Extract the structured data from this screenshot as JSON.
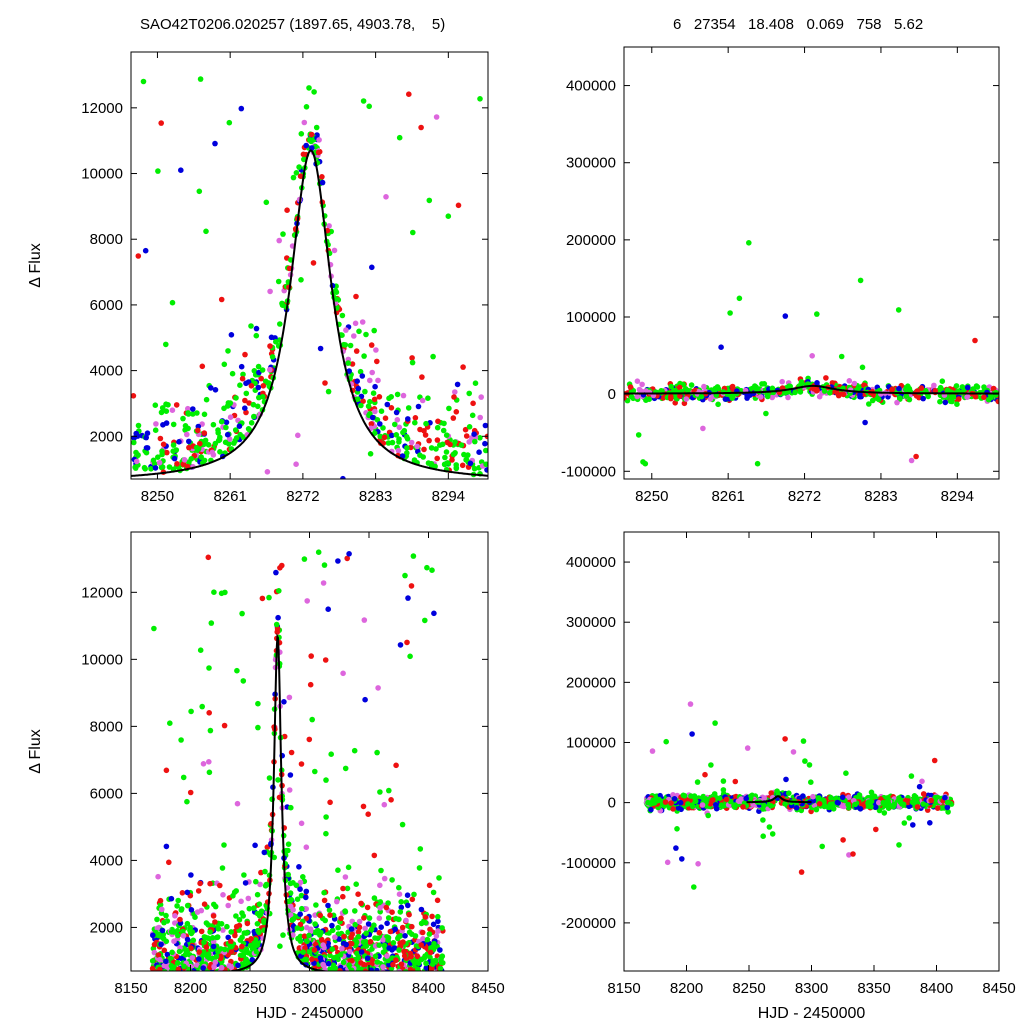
{
  "header": {
    "title": "SAO42T0206.020257 (1897.65, 4903.78,    5)",
    "stats": "6   27354   18.408   0.069   758   5.62"
  },
  "chart_data": [
    {
      "id": "top-left",
      "type": "scatter",
      "xlim": [
        8246,
        8300
      ],
      "ylim": [
        700,
        13700
      ],
      "xticks": [
        8250,
        8261,
        8272,
        8283,
        8294
      ],
      "yticks": [
        2000,
        4000,
        6000,
        8000,
        10000,
        12000
      ],
      "ylabel": "Δ Flux",
      "xlabel": "",
      "model": {
        "peak_x": 8273.2,
        "amplitude": 10100,
        "baseline": 600,
        "width": 3.8
      }
    },
    {
      "id": "top-right",
      "type": "scatter",
      "xlim": [
        8246,
        8300
      ],
      "ylim": [
        -110000,
        450000
      ],
      "xticks": [
        8250,
        8261,
        8272,
        8283,
        8294
      ],
      "yticks": [
        -100000,
        0,
        100000,
        200000,
        300000,
        400000
      ],
      "ylabel": "",
      "xlabel": "",
      "model": {
        "peak_x": 8273.2,
        "amplitude": 10100,
        "baseline": 600,
        "width": 3.8
      }
    },
    {
      "id": "bottom-left",
      "type": "scatter",
      "xlim": [
        8150,
        8450
      ],
      "ylim": [
        700,
        13800
      ],
      "xticks": [
        8150,
        8200,
        8250,
        8300,
        8350,
        8400,
        8450
      ],
      "yticks": [
        2000,
        4000,
        6000,
        8000,
        10000,
        12000
      ],
      "ylabel": "Δ Flux",
      "xlabel": "HJD - 2450000",
      "model": {
        "peak_x": 8273.2,
        "amplitude": 10100,
        "baseline": 600,
        "width": 3.8
      }
    },
    {
      "id": "bottom-right",
      "type": "scatter",
      "xlim": [
        8150,
        8450
      ],
      "ylim": [
        -280000,
        450000
      ],
      "xticks": [
        8150,
        8200,
        8250,
        8300,
        8350,
        8400,
        8450
      ],
      "yticks": [
        -200000,
        -100000,
        0,
        100000,
        200000,
        300000,
        400000
      ],
      "ylabel": "",
      "xlabel": "HJD - 2450000",
      "model": {
        "peak_x": 8273.2,
        "amplitude": 10100,
        "baseline": 600,
        "width": 3.8
      }
    }
  ],
  "colors": {
    "green": "#00ee00",
    "red": "#ee1111",
    "blue": "#0000dd",
    "violet": "#dd66dd",
    "model": "#000000"
  }
}
